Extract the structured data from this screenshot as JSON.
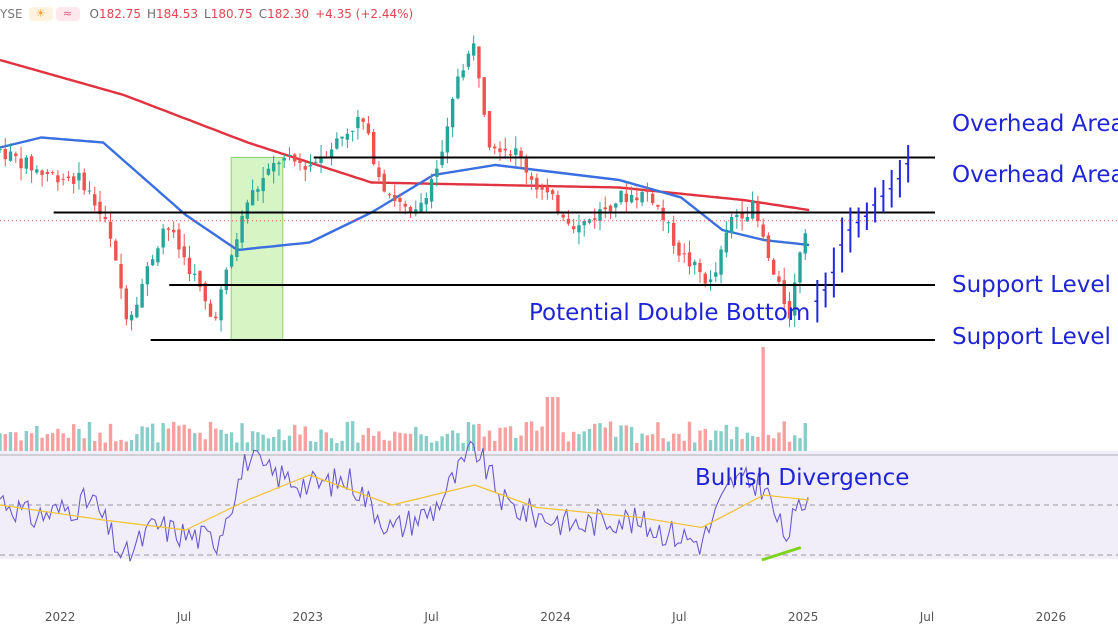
{
  "header": {
    "exchange_fragment": "YSE",
    "weather_icon": "sun-cloud-icon",
    "wave_icon": "wave-icon",
    "ohlc": [
      {
        "key": "O",
        "value": "182.75"
      },
      {
        "key": "H",
        "value": "184.53"
      },
      {
        "key": "L",
        "value": "180.75"
      },
      {
        "key": "C",
        "value": "182.30"
      }
    ],
    "change": "+4.35 (+2.44%)"
  },
  "colors": {
    "up": "#26a69a",
    "down": "#ef5350",
    "ma_long": "#e0323f",
    "ma_short": "#3a6fe0",
    "annotation_text": "#1f25d6",
    "projection": "#2328e0",
    "rsi_line": "#6a5acd",
    "rsi_ma": "#f1c232",
    "divergence_line": "#7ed321",
    "consolidation_box": "#c8f0b0"
  },
  "chart_data": {
    "type": "candlestick",
    "x_axis": {
      "tick_labels": [
        "2022",
        "Jul",
        "2023",
        "Jul",
        "2024",
        "Jul",
        "2025",
        "Jul",
        "2026"
      ],
      "range_months": [
        0,
        54
      ]
    },
    "price_axis": {
      "visible": false,
      "approx_range": [
        130,
        265
      ]
    },
    "last_bar": {
      "open": 182.75,
      "high": 184.53,
      "low": 180.75,
      "close": 182.3,
      "change": 4.35,
      "change_pct": 2.44
    },
    "price_anchors": [
      {
        "month": 0,
        "price": 209
      },
      {
        "month": 2,
        "price": 200
      },
      {
        "month": 4,
        "price": 197
      },
      {
        "month": 5.2,
        "price": 178
      },
      {
        "month": 6.2,
        "price": 141
      },
      {
        "month": 7,
        "price": 158
      },
      {
        "month": 8,
        "price": 180
      },
      {
        "month": 9.5,
        "price": 157
      },
      {
        "month": 10.3,
        "price": 140
      },
      {
        "month": 12,
        "price": 189
      },
      {
        "month": 13.5,
        "price": 205
      },
      {
        "month": 15,
        "price": 203
      },
      {
        "month": 16.5,
        "price": 214
      },
      {
        "month": 17.5,
        "price": 222
      },
      {
        "month": 18.5,
        "price": 196
      },
      {
        "month": 20,
        "price": 181
      },
      {
        "month": 21.5,
        "price": 208
      },
      {
        "month": 22.2,
        "price": 240
      },
      {
        "month": 23,
        "price": 251
      },
      {
        "month": 23.7,
        "price": 213
      },
      {
        "month": 25,
        "price": 208
      },
      {
        "month": 26,
        "price": 195
      },
      {
        "month": 28,
        "price": 178
      },
      {
        "month": 30,
        "price": 190
      },
      {
        "month": 31.5,
        "price": 192
      },
      {
        "month": 33,
        "price": 167
      },
      {
        "month": 34.5,
        "price": 155
      },
      {
        "month": 35.5,
        "price": 183
      },
      {
        "month": 36.5,
        "price": 186
      },
      {
        "month": 37.5,
        "price": 158
      },
      {
        "month": 38.3,
        "price": 143
      },
      {
        "month": 38.8,
        "price": 172
      },
      {
        "month": 39.2,
        "price": 182.3
      }
    ],
    "horizontal_levels": [
      {
        "label": "Overhead Area",
        "price": 206
      },
      {
        "label": "Overhead Area",
        "price": 184
      },
      {
        "label": "Support Level",
        "price": 155
      },
      {
        "label": "Support Level",
        "price": 133
      }
    ],
    "moving_average_long": [
      {
        "month": 0,
        "price": 245
      },
      {
        "month": 6,
        "price": 231
      },
      {
        "month": 12,
        "price": 212
      },
      {
        "month": 18,
        "price": 196
      },
      {
        "month": 24,
        "price": 195
      },
      {
        "month": 30,
        "price": 194
      },
      {
        "month": 36,
        "price": 189
      },
      {
        "month": 39.2,
        "price": 185
      }
    ],
    "moving_average_short": [
      {
        "month": 0,
        "price": 210
      },
      {
        "month": 2,
        "price": 214
      },
      {
        "month": 5,
        "price": 212
      },
      {
        "month": 9,
        "price": 183
      },
      {
        "month": 11.5,
        "price": 169
      },
      {
        "month": 15,
        "price": 172
      },
      {
        "month": 18,
        "price": 184
      },
      {
        "month": 21,
        "price": 199
      },
      {
        "month": 24,
        "price": 203
      },
      {
        "month": 27,
        "price": 200
      },
      {
        "month": 30,
        "price": 197
      },
      {
        "month": 33,
        "price": 190
      },
      {
        "month": 35,
        "price": 177
      },
      {
        "month": 37,
        "price": 173
      },
      {
        "month": 39.2,
        "price": 171
      }
    ],
    "consolidation_box": {
      "month_start": 11.2,
      "month_end": 13.7,
      "price_low": 133,
      "price_high": 206
    },
    "projection_bars": [
      {
        "month": 39.6,
        "low": 140,
        "high": 157
      },
      {
        "month": 40.0,
        "low": 146,
        "high": 160
      },
      {
        "month": 40.4,
        "low": 150,
        "high": 170
      },
      {
        "month": 40.8,
        "low": 160,
        "high": 182
      },
      {
        "month": 41.2,
        "low": 168,
        "high": 186
      },
      {
        "month": 41.6,
        "low": 174,
        "high": 186
      },
      {
        "month": 42.0,
        "low": 177,
        "high": 188
      },
      {
        "month": 42.4,
        "low": 180,
        "high": 194
      },
      {
        "month": 42.8,
        "low": 184,
        "high": 197
      },
      {
        "month": 43.2,
        "low": 186,
        "high": 201
      },
      {
        "month": 43.6,
        "low": 190,
        "high": 205
      },
      {
        "month": 44.0,
        "low": 196,
        "high": 211
      }
    ],
    "rsi": {
      "guide_levels": [
        70,
        50,
        30
      ],
      "anchors": [
        {
          "month": 0,
          "v": 53
        },
        {
          "month": 1.5,
          "v": 45
        },
        {
          "month": 3,
          "v": 48
        },
        {
          "month": 4.5,
          "v": 52
        },
        {
          "month": 6,
          "v": 28
        },
        {
          "month": 7.5,
          "v": 42
        },
        {
          "month": 9,
          "v": 38
        },
        {
          "month": 10.5,
          "v": 36
        },
        {
          "month": 12,
          "v": 69
        },
        {
          "month": 13,
          "v": 63
        },
        {
          "month": 15,
          "v": 58
        },
        {
          "month": 17,
          "v": 60
        },
        {
          "month": 19,
          "v": 40
        },
        {
          "month": 21,
          "v": 48
        },
        {
          "month": 23,
          "v": 73
        },
        {
          "month": 24.5,
          "v": 50
        },
        {
          "month": 26,
          "v": 46
        },
        {
          "month": 28,
          "v": 42
        },
        {
          "month": 30,
          "v": 45
        },
        {
          "month": 32,
          "v": 40
        },
        {
          "month": 34,
          "v": 35
        },
        {
          "month": 35.5,
          "v": 60
        },
        {
          "month": 37,
          "v": 58
        },
        {
          "month": 38,
          "v": 37
        },
        {
          "month": 39.2,
          "v": 55
        }
      ],
      "ma_anchors": [
        {
          "month": 0,
          "v": 50
        },
        {
          "month": 5,
          "v": 44
        },
        {
          "month": 9,
          "v": 40
        },
        {
          "month": 12,
          "v": 52
        },
        {
          "month": 15,
          "v": 62
        },
        {
          "month": 19,
          "v": 50
        },
        {
          "month": 23,
          "v": 58
        },
        {
          "month": 26,
          "v": 49
        },
        {
          "month": 31,
          "v": 45
        },
        {
          "month": 34,
          "v": 41
        },
        {
          "month": 37,
          "v": 54
        },
        {
          "month": 39.2,
          "v": 52
        }
      ],
      "divergence_line": [
        {
          "month": 34.0,
          "v": 28
        },
        {
          "month": 38.8,
          "v": 33
        }
      ]
    }
  },
  "annotations": {
    "overhead_1": "Overhead Area",
    "overhead_2": "Overhead Area",
    "support_1": "Support Level",
    "support_2": "Support Level",
    "double_bottom": "Potential Double Bottom",
    "bullish_divergence": "Bullish Divergence"
  }
}
